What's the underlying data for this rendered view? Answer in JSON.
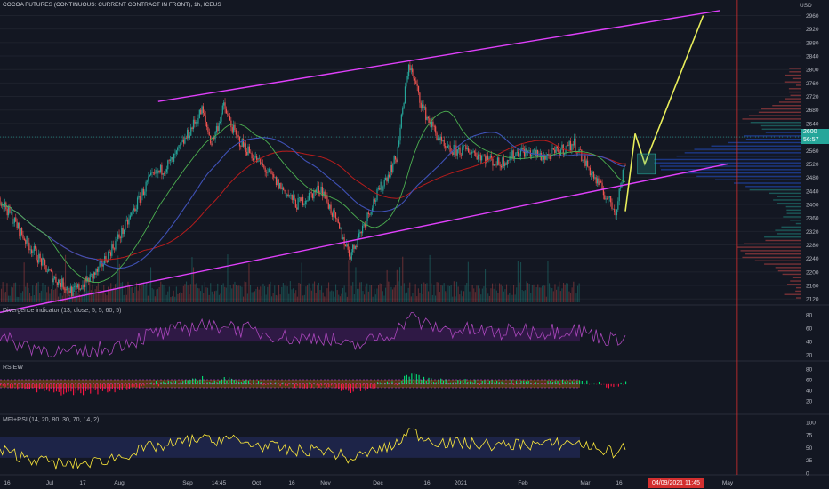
{
  "header": {
    "title": "COCOA FUTURES (CONTINUOUS: CURRENT CONTRACT IN FRONT), 1h, ICEUS",
    "currency": "USD"
  },
  "price_tag": {
    "price": "2600",
    "countdown": "56:57"
  },
  "cursor": {
    "date_label": "04/09/2021 11:45"
  },
  "colors": {
    "bg": "#131722",
    "up": "#26a69a",
    "down": "#ef5350",
    "channel": "#e040fb",
    "projection": "#e8ed5a",
    "sma_green": "#4caf50",
    "sma_blue": "#3f51b5",
    "sma_red": "#b71c1c",
    "grid": "#1e222d",
    "text": "#b2b5be"
  },
  "chart_data": [
    {
      "type": "candlestick",
      "title": "COCOA FUTURES (CONTINUOUS: CURRENT CONTRACT IN FRONT), 1h, ICEUS",
      "y_ticks": [
        2960,
        2920,
        2880,
        2840,
        2800,
        2760,
        2720,
        2680,
        2640,
        2600,
        2560,
        2520,
        2480,
        2440,
        2400,
        2360,
        2320,
        2280,
        2240,
        2200,
        2160,
        2120
      ],
      "ylim": [
        2110,
        2985
      ],
      "x_tick_labels": [
        "16",
        "Jul",
        "17",
        "Aug",
        "Sep",
        "14:45",
        "Oct",
        "16",
        "Nov",
        "Dec",
        "16",
        "2021",
        "Feb",
        "Mar",
        "16",
        "Apr",
        "May"
      ],
      "price_path": {
        "dates": [
          "Jun 10",
          "Jun 20",
          "Jul 1",
          "Jul 10",
          "Jul 20",
          "Aug 1",
          "Aug 10",
          "Aug 20",
          "Sep 1",
          "Sep 5",
          "Sep 10",
          "Sep 15",
          "Sep 20",
          "Oct 1",
          "Oct 10",
          "Oct 20",
          "Nov 1",
          "Nov 10",
          "Nov 20",
          "Nov 25",
          "Dec 1",
          "Dec 10",
          "Dec 20",
          "Jan 1",
          "Jan 10",
          "Jan 20",
          "Feb 1",
          "Feb 10",
          "Feb 18",
          "Feb 22"
        ],
        "price": [
          2420,
          2300,
          2190,
          2140,
          2200,
          2340,
          2470,
          2530,
          2680,
          2580,
          2690,
          2600,
          2560,
          2470,
          2400,
          2450,
          2250,
          2400,
          2540,
          2820,
          2680,
          2560,
          2560,
          2520,
          2560,
          2540,
          2580,
          2470,
          2380,
          2530
        ]
      },
      "channel": {
        "upper": [
          {
            "date": "Aug 14",
            "price": 2705
          },
          {
            "date": "Apr 2",
            "price": 2975
          }
        ],
        "lower": [
          {
            "date": "Jun 10",
            "price": 2080
          },
          {
            "date": "Apr 5",
            "price": 2520
          }
        ]
      },
      "projection": [
        {
          "date": "Feb 22",
          "price": 2380
        },
        {
          "date": "Feb 26",
          "price": 2610
        },
        {
          "date": "Mar 2",
          "price": 2520
        },
        {
          "date": "Mar 26",
          "price": 2960
        }
      ],
      "vertical_marker": {
        "date": "Apr 9, 2021 11:45"
      },
      "current_price": 2600
    },
    {
      "type": "line",
      "title": "Divergence indicator (13, close, 5, 5, 60, 5)",
      "y_ticks": [
        80,
        60,
        40,
        20
      ],
      "ylim": [
        15,
        85
      ]
    },
    {
      "type": "area",
      "title": "RSIEW",
      "y_ticks": [
        80,
        60,
        40,
        20
      ],
      "ylim": [
        0,
        85
      ]
    },
    {
      "type": "line",
      "title": "MFI+RSI (14, 20, 80, 30, 70, 14, 2)",
      "y_ticks": [
        100,
        75,
        50,
        25,
        0
      ],
      "ylim": [
        0,
        105
      ]
    }
  ]
}
